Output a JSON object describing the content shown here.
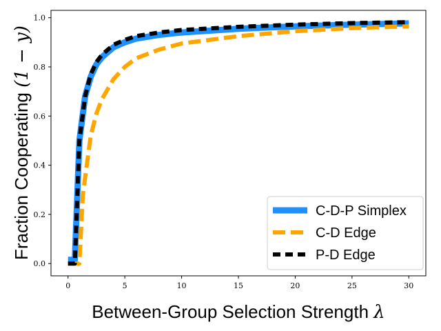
{
  "chart_data": {
    "type": "line",
    "title": "",
    "xlabel": "Between-Group Selection Strength",
    "xlabel_symbol": "λ",
    "ylabel": "Fraction Cooperating",
    "ylabel_symbol": "(1 − y)",
    "xlim": [
      -1.5,
      31.5
    ],
    "ylim": [
      -0.05,
      1.03
    ],
    "xticks": [
      0,
      5,
      10,
      15,
      20,
      25,
      30
    ],
    "yticks": [
      "0.0",
      "0.2",
      "0.4",
      "0.6",
      "0.8",
      "1.0"
    ],
    "legend_position": "lower-right",
    "series": [
      {
        "name": "C-D-P Simplex",
        "color": "#1e90ff",
        "style": "solid",
        "x": [
          0,
          0.6,
          1,
          1.5,
          2,
          2.5,
          3,
          4,
          5,
          6,
          8,
          10,
          15,
          20,
          25,
          30
        ],
        "y": [
          0.015,
          0.015,
          0.5,
          0.68,
          0.76,
          0.81,
          0.84,
          0.88,
          0.9,
          0.915,
          0.93,
          0.94,
          0.955,
          0.965,
          0.972,
          0.977
        ]
      },
      {
        "name": "C-D Edge",
        "color": "#ffa500",
        "style": "dashed",
        "x": [
          0,
          1,
          1.3,
          2,
          2.5,
          3,
          4,
          5,
          6,
          8,
          10,
          15,
          20,
          25,
          30
        ],
        "y": [
          0.0,
          0.0,
          0.28,
          0.52,
          0.61,
          0.67,
          0.75,
          0.8,
          0.835,
          0.87,
          0.895,
          0.925,
          0.945,
          0.958,
          0.965
        ]
      },
      {
        "name": "P-D Edge",
        "color": "#000000",
        "style": "dashed",
        "x": [
          0,
          0.6,
          1,
          1.5,
          2,
          2.5,
          3,
          4,
          5,
          6,
          8,
          10,
          15,
          20,
          25,
          30
        ],
        "y": [
          0.0,
          0.0,
          0.5,
          0.68,
          0.77,
          0.82,
          0.85,
          0.89,
          0.91,
          0.925,
          0.94,
          0.95,
          0.963,
          0.972,
          0.978,
          0.982
        ]
      }
    ]
  }
}
